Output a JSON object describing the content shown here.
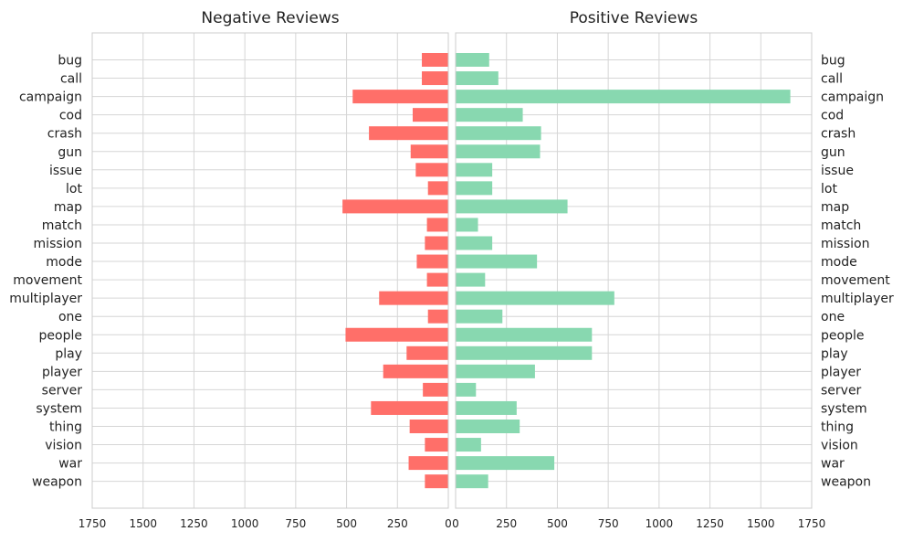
{
  "chart_data": [
    {
      "type": "bar",
      "orientation": "horizontal",
      "direction": "reversed",
      "title": "Negative Reviews",
      "color": "#ff6f69",
      "categories": [
        "bug",
        "call",
        "campaign",
        "cod",
        "crash",
        "gun",
        "issue",
        "lot",
        "map",
        "match",
        "mission",
        "mode",
        "movement",
        "multiplayer",
        "one",
        "people",
        "play",
        "player",
        "server",
        "system",
        "thing",
        "vision",
        "war",
        "weapon"
      ],
      "values": [
        130,
        130,
        470,
        175,
        390,
        185,
        160,
        100,
        520,
        105,
        115,
        155,
        105,
        340,
        100,
        505,
        205,
        320,
        125,
        380,
        190,
        115,
        195,
        115
      ],
      "xlim": [
        0,
        1750
      ],
      "ticks": [
        0,
        250,
        500,
        750,
        1000,
        1250,
        1500,
        1750
      ],
      "tick_labels": [
        "0",
        "250",
        "500",
        "750",
        "1000",
        "1250",
        "1500",
        "1750"
      ],
      "grid": true
    },
    {
      "type": "bar",
      "orientation": "horizontal",
      "direction": "normal",
      "title": "Positive Reviews",
      "color": "#88d8b0",
      "categories": [
        "bug",
        "call",
        "campaign",
        "cod",
        "crash",
        "gun",
        "issue",
        "lot",
        "map",
        "match",
        "mission",
        "mode",
        "movement",
        "multiplayer",
        "one",
        "people",
        "play",
        "player",
        "server",
        "system",
        "thing",
        "vision",
        "war",
        "weapon"
      ],
      "values": [
        165,
        210,
        1645,
        330,
        420,
        415,
        180,
        180,
        550,
        110,
        180,
        400,
        145,
        780,
        230,
        670,
        670,
        390,
        100,
        300,
        315,
        125,
        485,
        160
      ],
      "xlim": [
        0,
        1750
      ],
      "ticks": [
        0,
        250,
        500,
        750,
        1000,
        1250,
        1500,
        1750
      ],
      "tick_labels": [
        "0",
        "250",
        "500",
        "750",
        "1000",
        "1250",
        "1500",
        "1750"
      ],
      "grid": true
    }
  ]
}
